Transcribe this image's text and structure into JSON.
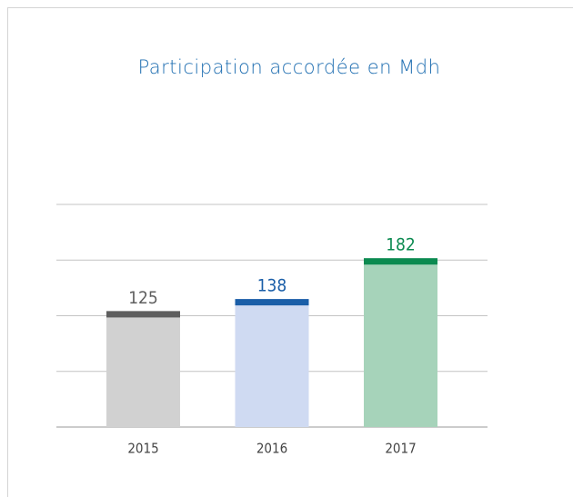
{
  "chart_data": {
    "type": "bar",
    "title": "Participation accordée en Mdh",
    "categories": [
      "2015",
      "2016",
      "2017"
    ],
    "values": [
      125,
      138,
      182
    ],
    "colors": [
      "#d1d1d1",
      "#cfdaf2",
      "#a6d3ba"
    ],
    "cap_colors": [
      "#5e5e5e",
      "#1a5ea8",
      "#0b8a50"
    ],
    "ylim": [
      0,
      240
    ],
    "yticks": [
      0,
      60,
      120,
      180,
      240
    ],
    "grid": true
  }
}
